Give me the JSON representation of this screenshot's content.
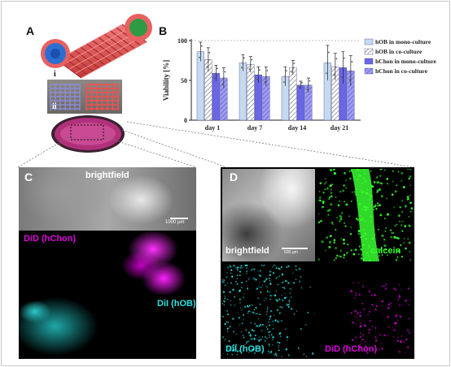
{
  "panels": {
    "a": {
      "label": "A",
      "sub_labels": [
        "i",
        "ii",
        "iii"
      ]
    },
    "b": {
      "label": "B"
    },
    "c": {
      "label": "C",
      "captions": [
        "brightfield",
        "DiD (hChon)",
        "DiI (hOB)"
      ],
      "scalebar": "1000 µm"
    },
    "d": {
      "label": "D",
      "captions": [
        "brightfield",
        "calcein",
        "DiI (hOB)",
        "DiD (hChon)"
      ],
      "scalebar": "500 µm"
    }
  },
  "colors": {
    "hob_mono": "#c5daf0",
    "hob_co": "#d8d8d8",
    "hchon_mono": "#6a67e6",
    "hchon_co": "#9f9df0",
    "did": "#e000e0",
    "dii": "#2ee0e0",
    "calcein": "#38ff30"
  },
  "chart_data": {
    "type": "bar",
    "ylabel": "Viability [%]",
    "ylim": [
      0,
      100
    ],
    "yticks": [
      0,
      50,
      100
    ],
    "categories": [
      "day 1",
      "day 7",
      "day 14",
      "day 21"
    ],
    "legend_position": "top-right",
    "series": [
      {
        "name": "hOB in mono-culture",
        "values": [
          86,
          72,
          55,
          72
        ],
        "errors": [
          12,
          10,
          12,
          22
        ]
      },
      {
        "name": "hOB in co-culture",
        "values": [
          76,
          70,
          66,
          67
        ],
        "errors": [
          15,
          10,
          9,
          17
        ]
      },
      {
        "name": "hChon in mono-culture",
        "values": [
          59,
          57,
          44,
          66
        ],
        "errors": [
          10,
          10,
          5,
          20
        ]
      },
      {
        "name": "hChon in co-culture",
        "values": [
          53,
          55,
          44,
          62
        ],
        "errors": [
          13,
          12,
          9,
          19
        ]
      }
    ]
  }
}
